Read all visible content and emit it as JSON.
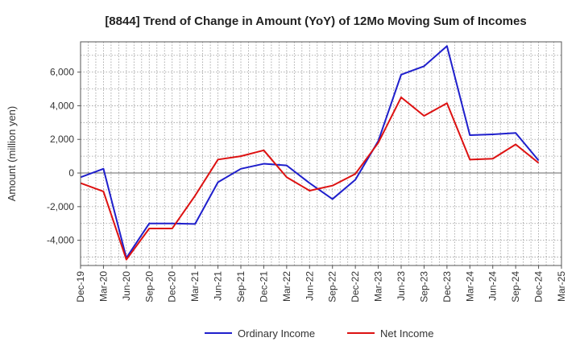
{
  "chart_data": {
    "type": "line",
    "title": "[8844]  Trend of Change in Amount (YoY) of 12Mo Moving Sum of Incomes",
    "xlabel": "",
    "ylabel": "Amount (million yen)",
    "ylim": [
      -5500,
      7800
    ],
    "yticks": [
      -4000,
      -2000,
      0,
      2000,
      4000,
      6000
    ],
    "ytick_labels": [
      "-4,000",
      "-2,000",
      "0",
      "2,000",
      "4,000",
      "6,000"
    ],
    "categories": [
      "Dec-19",
      "Mar-20",
      "Jun-20",
      "Sep-20",
      "Dec-20",
      "Mar-21",
      "Jun-21",
      "Sep-21",
      "Dec-21",
      "Mar-22",
      "Jun-22",
      "Sep-22",
      "Dec-22",
      "Mar-23",
      "Jun-23",
      "Sep-23",
      "Dec-23",
      "Mar-24",
      "Jun-24",
      "Sep-24",
      "Dec-24",
      "Mar-25"
    ],
    "grid": true,
    "legend_position": "bottom",
    "series": [
      {
        "name": "Ordinary Income",
        "color": "#1f1fcc",
        "values": [
          -250,
          250,
          -5050,
          -3000,
          -3000,
          -3030,
          -550,
          250,
          550,
          450,
          -600,
          -1550,
          -400,
          1900,
          5850,
          6350,
          7550,
          2250,
          2300,
          2380,
          750,
          null
        ]
      },
      {
        "name": "Net Income",
        "color": "#dd1111",
        "values": [
          -600,
          -1100,
          -5150,
          -3300,
          -3300,
          -1350,
          800,
          1000,
          1350,
          -250,
          -1050,
          -750,
          -50,
          1800,
          4500,
          3400,
          4150,
          800,
          850,
          1700,
          600,
          null
        ]
      }
    ]
  }
}
